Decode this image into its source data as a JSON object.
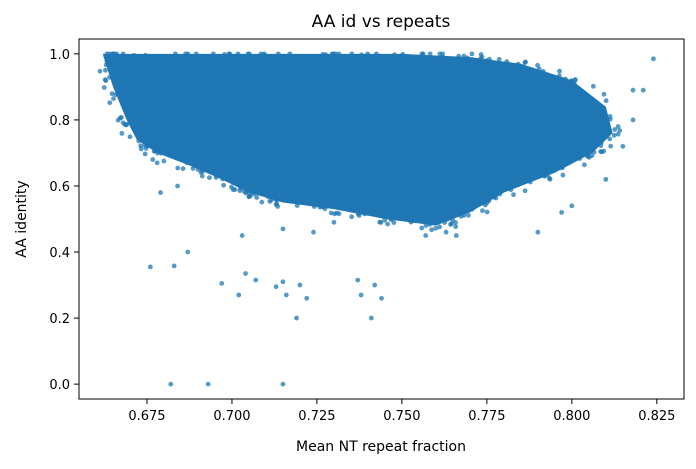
{
  "chart_data": {
    "type": "scatter",
    "title": "AA id vs repeats",
    "xlabel": "Mean NT repeat fraction",
    "ylabel": "AA identity",
    "xlim": [
      0.655,
      0.833
    ],
    "ylim": [
      -0.045,
      1.045
    ],
    "xticks": [
      0.675,
      0.7,
      0.725,
      0.75,
      0.775,
      0.8,
      0.825
    ],
    "xtick_labels": [
      "0.675",
      "0.700",
      "0.725",
      "0.750",
      "0.775",
      "0.800",
      "0.825"
    ],
    "yticks": [
      0.0,
      0.2,
      0.4,
      0.6,
      0.8,
      1.0
    ],
    "ytick_labels": [
      "0.0",
      "0.2",
      "0.4",
      "0.6",
      "0.8",
      "1.0"
    ],
    "grid": false,
    "marker_color": "#1f77b4",
    "marker_alpha": 0.75,
    "dense_cloud": {
      "description_points": [
        [
          0.662,
          1.0
        ],
        [
          0.675,
          1.0
        ],
        [
          0.7,
          1.0
        ],
        [
          0.725,
          1.0
        ],
        [
          0.75,
          1.0
        ],
        [
          0.77,
          0.99
        ],
        [
          0.785,
          0.97
        ],
        [
          0.8,
          0.92
        ],
        [
          0.81,
          0.84
        ],
        [
          0.812,
          0.76
        ],
        [
          0.806,
          0.7
        ],
        [
          0.795,
          0.64
        ],
        [
          0.78,
          0.58
        ],
        [
          0.77,
          0.52
        ],
        [
          0.76,
          0.48
        ],
        [
          0.745,
          0.5
        ],
        [
          0.73,
          0.53
        ],
        [
          0.715,
          0.55
        ],
        [
          0.705,
          0.58
        ],
        [
          0.697,
          0.62
        ],
        [
          0.688,
          0.66
        ],
        [
          0.678,
          0.7
        ],
        [
          0.672,
          0.74
        ],
        [
          0.669,
          0.8
        ],
        [
          0.665,
          0.9
        ]
      ]
    },
    "outliers": [
      [
        0.676,
        0.355
      ],
      [
        0.683,
        0.358
      ],
      [
        0.687,
        0.4
      ],
      [
        0.697,
        0.305
      ],
      [
        0.702,
        0.27
      ],
      [
        0.704,
        0.335
      ],
      [
        0.707,
        0.315
      ],
      [
        0.713,
        0.295
      ],
      [
        0.715,
        0.31
      ],
      [
        0.716,
        0.27
      ],
      [
        0.719,
        0.2
      ],
      [
        0.72,
        0.3
      ],
      [
        0.722,
        0.26
      ],
      [
        0.737,
        0.315
      ],
      [
        0.738,
        0.27
      ],
      [
        0.741,
        0.2
      ],
      [
        0.742,
        0.3
      ],
      [
        0.744,
        0.26
      ],
      [
        0.682,
        0.0
      ],
      [
        0.693,
        0.0
      ],
      [
        0.715,
        0.0
      ],
      [
        0.679,
        0.58
      ],
      [
        0.684,
        0.6
      ],
      [
        0.678,
        0.67
      ],
      [
        0.69,
        0.65
      ],
      [
        0.703,
        0.45
      ],
      [
        0.715,
        0.47
      ],
      [
        0.724,
        0.46
      ],
      [
        0.73,
        0.49
      ],
      [
        0.757,
        0.45
      ],
      [
        0.763,
        0.46
      ],
      [
        0.766,
        0.45
      ],
      [
        0.79,
        0.46
      ],
      [
        0.797,
        0.52
      ],
      [
        0.8,
        0.54
      ],
      [
        0.81,
        0.62
      ],
      [
        0.815,
        0.72
      ],
      [
        0.818,
        0.89
      ],
      [
        0.821,
        0.89
      ],
      [
        0.824,
        0.985
      ],
      [
        0.818,
        0.8
      ]
    ]
  }
}
